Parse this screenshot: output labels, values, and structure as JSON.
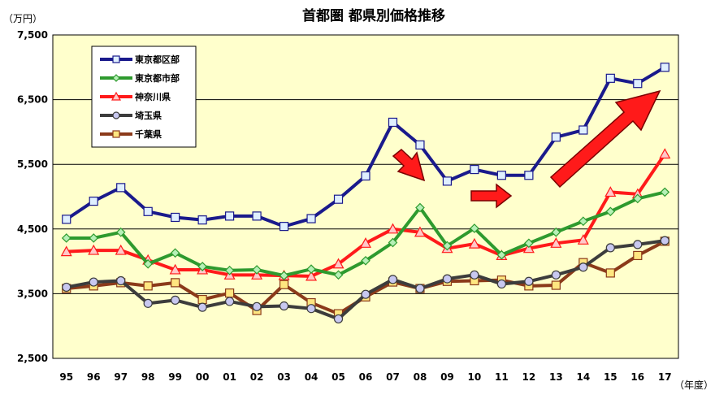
{
  "chart_data": {
    "type": "line",
    "title": "首都圏 都県別価格推移",
    "y_unit": "（万円）",
    "x_unit": "（年度）",
    "xlabel": "",
    "ylabel": "",
    "ylim": [
      2500,
      7500
    ],
    "y_ticks": [
      "2,500",
      "3,500",
      "4,500",
      "5,500",
      "6,500",
      "7,500"
    ],
    "categories": [
      "95",
      "96",
      "97",
      "98",
      "99",
      "00",
      "01",
      "02",
      "03",
      "04",
      "05",
      "06",
      "07",
      "08",
      "09",
      "10",
      "11",
      "12",
      "13",
      "14",
      "15",
      "16",
      "17"
    ],
    "grid": "horizontal",
    "legend_position": "top-left",
    "series": [
      {
        "name": "東京都区部",
        "color": "#1a1a8c",
        "marker": "square",
        "marker_fill": "#dfefff",
        "values": [
          4650,
          4930,
          5140,
          4770,
          4680,
          4640,
          4700,
          4700,
          4540,
          4660,
          4960,
          5320,
          6150,
          5800,
          5240,
          5420,
          5330,
          5330,
          5920,
          6030,
          6830,
          6750,
          7000
        ]
      },
      {
        "name": "東京都市部",
        "color": "#2e9a2e",
        "marker": "diamond",
        "marker_fill": "#b6f0b6",
        "values": [
          4360,
          4360,
          4450,
          3960,
          4130,
          3920,
          3860,
          3870,
          3780,
          3880,
          3790,
          4010,
          4290,
          4830,
          4240,
          4510,
          4100,
          4280,
          4450,
          4620,
          4770,
          4970,
          5070
        ]
      },
      {
        "name": "神奈川県",
        "color": "#ff1a1a",
        "marker": "triangle",
        "marker_fill": "#ffc8c8",
        "values": [
          4150,
          4170,
          4170,
          4020,
          3870,
          3870,
          3790,
          3790,
          3780,
          3770,
          3960,
          4280,
          4500,
          4450,
          4200,
          4270,
          4090,
          4200,
          4280,
          4330,
          5070,
          5040,
          5660
        ]
      },
      {
        "name": "埼玉県",
        "color": "#3c3c3c",
        "marker": "circle",
        "marker_fill": "#c8c8f0",
        "values": [
          3600,
          3680,
          3700,
          3350,
          3400,
          3290,
          3380,
          3300,
          3310,
          3270,
          3110,
          3490,
          3720,
          3580,
          3730,
          3790,
          3650,
          3690,
          3790,
          3910,
          4210,
          4260,
          4320
        ]
      },
      {
        "name": "千葉県",
        "color": "#8b3a1a",
        "marker": "square",
        "marker_fill": "#ffe680",
        "values": [
          3580,
          3620,
          3670,
          3620,
          3670,
          3410,
          3510,
          3240,
          3640,
          3360,
          3190,
          3450,
          3680,
          3580,
          3690,
          3700,
          3710,
          3620,
          3630,
          3980,
          3820,
          4090,
          4310
        ]
      }
    ]
  },
  "colors": {
    "plot_background": "#ffffcc",
    "grid_line": "#000000",
    "arrow_fill": "#ff1a1a",
    "arrow_stroke": "#7a0000"
  }
}
